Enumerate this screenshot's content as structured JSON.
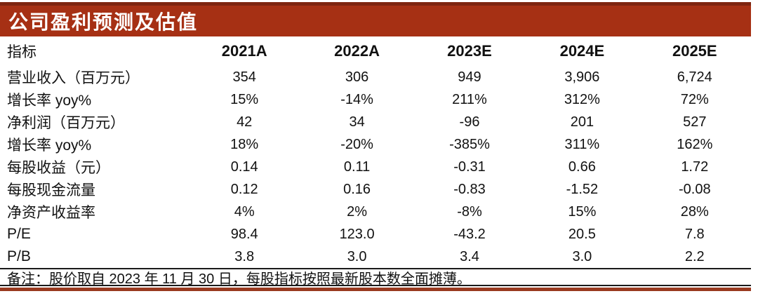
{
  "title": "公司盈利预测及估值",
  "colors": {
    "title_bar_red": "#a63014",
    "top_rule_red": "#7e2510",
    "bottom_rule_red": "#993a20",
    "separator_black": "#1a1a1a",
    "title_text": "#ffffff",
    "body_text": "#111111"
  },
  "table": {
    "header": {
      "label": "指标",
      "years": [
        "2021A",
        "2022A",
        "2023E",
        "2024E",
        "2025E"
      ]
    },
    "rows": [
      {
        "label": "营业收入（百万元）",
        "values": [
          "354",
          "306",
          "949",
          "3,906",
          "6,724"
        ]
      },
      {
        "label": "增长率 yoy%",
        "values": [
          "15%",
          "-14%",
          "211%",
          "312%",
          "72%"
        ]
      },
      {
        "label": "净利润（百万元）",
        "values": [
          "42",
          "34",
          "-96",
          "201",
          "527"
        ]
      },
      {
        "label": "增长率 yoy%",
        "values": [
          "18%",
          "-20%",
          "-385%",
          "311%",
          "162%"
        ]
      },
      {
        "label": "每股收益（元）",
        "values": [
          "0.14",
          "0.11",
          "-0.31",
          "0.66",
          "1.72"
        ]
      },
      {
        "label": "每股现金流量",
        "values": [
          "0.12",
          "0.16",
          "-0.83",
          "-1.52",
          "-0.08"
        ]
      },
      {
        "label": "净资产收益率",
        "values": [
          "4%",
          "2%",
          "-8%",
          "15%",
          "28%"
        ]
      },
      {
        "label": "P/E",
        "values": [
          "98.4",
          "123.0",
          "-43.2",
          "20.5",
          "7.8"
        ]
      },
      {
        "label": "P/B",
        "values": [
          "3.8",
          "3.0",
          "3.4",
          "3.0",
          "2.2"
        ]
      }
    ],
    "footnote": "备注：股价取自 2023 年 11 月 30 日，每股指标按照最新股本数全面摊薄。"
  }
}
